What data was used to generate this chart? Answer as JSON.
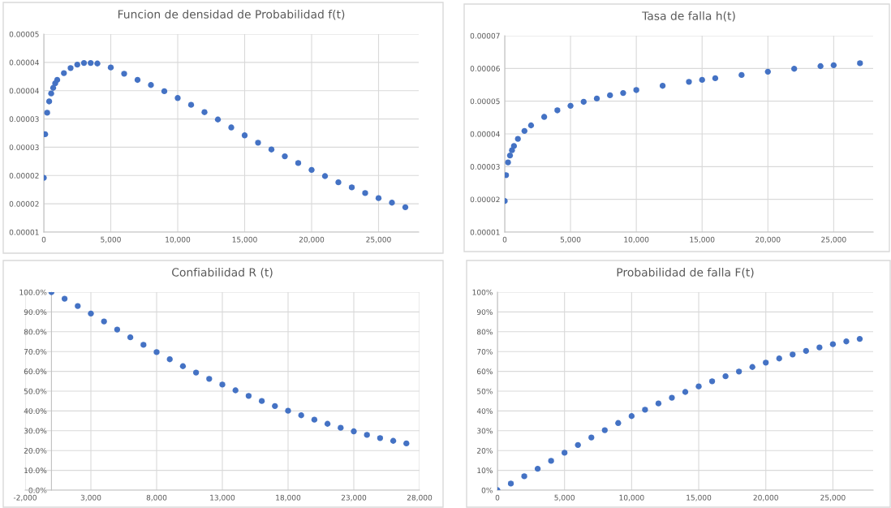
{
  "chart_data": [
    {
      "type": "scatter",
      "title": "Funcion de densidad de Probabilidad f(t)",
      "marker": "circle",
      "grid": true,
      "x": [
        0,
        100,
        250,
        400,
        550,
        700,
        850,
        1000,
        1500,
        2000,
        2500,
        3000,
        3500,
        4000,
        5000,
        6000,
        7000,
        8000,
        9000,
        10000,
        11000,
        12000,
        13000,
        14000,
        15000,
        16000,
        17000,
        18000,
        19000,
        20000,
        21000,
        22000,
        23000,
        24000,
        25000,
        26000,
        27000
      ],
      "series": [
        {
          "color": "#4472c4",
          "values": [
            1.96e-05,
            2.73e-05,
            3.11e-05,
            3.31e-05,
            3.45e-05,
            3.55e-05,
            3.63e-05,
            3.69e-05,
            3.81e-05,
            3.9e-05,
            3.96e-05,
            3.99e-05,
            3.99e-05,
            3.98e-05,
            3.91e-05,
            3.8e-05,
            3.69e-05,
            3.6e-05,
            3.49e-05,
            3.37e-05,
            3.25e-05,
            3.12e-05,
            2.99e-05,
            2.85e-05,
            2.71e-05,
            2.58e-05,
            2.46e-05,
            2.34e-05,
            2.22e-05,
            2.1e-05,
            1.99e-05,
            1.88e-05,
            1.79e-05,
            1.69e-05,
            1.6e-05,
            1.52e-05,
            1.44e-05
          ]
        }
      ],
      "xlim": [
        0,
        28000
      ],
      "xticks": [
        {
          "value": 0,
          "label": "0"
        },
        {
          "value": 5000,
          "label": "5,000"
        },
        {
          "value": 10000,
          "label": "10,000"
        },
        {
          "value": 15000,
          "label": "15,000"
        },
        {
          "value": 20000,
          "label": "20,000"
        },
        {
          "value": 25000,
          "label": "25,000"
        }
      ],
      "ylim": [
        1e-05,
        4.5e-05
      ],
      "yticks": [
        {
          "value": 1e-05,
          "label": "0.00001"
        },
        {
          "value": 1.5e-05,
          "label": "0.00002"
        },
        {
          "value": 2e-05,
          "label": "0.00002"
        },
        {
          "value": 2.5e-05,
          "label": "0.00003"
        },
        {
          "value": 3e-05,
          "label": "0.00003"
        },
        {
          "value": 3.5e-05,
          "label": "0.00004"
        },
        {
          "value": 4e-05,
          "label": "0.00004"
        },
        {
          "value": 4.5e-05,
          "label": "0.00005"
        }
      ]
    },
    {
      "type": "scatter",
      "title": "Tasa de falla h(t)",
      "marker": "circle",
      "grid": true,
      "x": [
        0,
        100,
        250,
        400,
        550,
        700,
        1000,
        1500,
        2000,
        3000,
        4000,
        5000,
        6000,
        7000,
        8000,
        9000,
        10000,
        12000,
        14000,
        15000,
        16000,
        18000,
        20000,
        22000,
        24000,
        25000,
        27000
      ],
      "series": [
        {
          "color": "#4472c4",
          "values": [
            1.95e-05,
            2.74e-05,
            3.13e-05,
            3.34e-05,
            3.5e-05,
            3.63e-05,
            3.85e-05,
            4.09e-05,
            4.26e-05,
            4.52e-05,
            4.72e-05,
            4.86e-05,
            4.98e-05,
            5.08e-05,
            5.18e-05,
            5.25e-05,
            5.34e-05,
            5.47e-05,
            5.59e-05,
            5.65e-05,
            5.7e-05,
            5.8e-05,
            5.9e-05,
            5.99e-05,
            6.07e-05,
            6.1e-05,
            6.16e-05
          ]
        }
      ],
      "xlim": [
        0,
        28000
      ],
      "xticks": [
        {
          "value": 0,
          "label": "0"
        },
        {
          "value": 5000,
          "label": "5,000"
        },
        {
          "value": 10000,
          "label": "10,000"
        },
        {
          "value": 15000,
          "label": "15,000"
        },
        {
          "value": 20000,
          "label": "20,000"
        },
        {
          "value": 25000,
          "label": "25,000"
        }
      ],
      "ylim": [
        1e-05,
        7e-05
      ],
      "yticks": [
        {
          "value": 1e-05,
          "label": "0.00001"
        },
        {
          "value": 2e-05,
          "label": "0.00002"
        },
        {
          "value": 3e-05,
          "label": "0.00003"
        },
        {
          "value": 4e-05,
          "label": "0.00004"
        },
        {
          "value": 5e-05,
          "label": "0.00005"
        },
        {
          "value": 6e-05,
          "label": "0.00006"
        },
        {
          "value": 7e-05,
          "label": "0.00007"
        }
      ]
    },
    {
      "type": "scatter",
      "title": "Confiabilidad R (t)",
      "marker": "circle",
      "grid": true,
      "x": [
        0,
        1000,
        2000,
        3000,
        4000,
        5000,
        6000,
        7000,
        8000,
        9000,
        10000,
        11000,
        12000,
        13000,
        14000,
        15000,
        16000,
        17000,
        18000,
        19000,
        20000,
        21000,
        22000,
        23000,
        24000,
        25000,
        26000,
        27000
      ],
      "series": [
        {
          "color": "#4472c4",
          "values": [
            1.0,
            0.967,
            0.93,
            0.892,
            0.852,
            0.811,
            0.772,
            0.734,
            0.697,
            0.661,
            0.626,
            0.594,
            0.562,
            0.533,
            0.504,
            0.476,
            0.45,
            0.425,
            0.401,
            0.378,
            0.356,
            0.335,
            0.315,
            0.297,
            0.279,
            0.263,
            0.249,
            0.236
          ]
        }
      ],
      "xlim": [
        -2000,
        28000
      ],
      "xticks": [
        {
          "value": -2000,
          "label": "-2,000"
        },
        {
          "value": 3000,
          "label": "3,000"
        },
        {
          "value": 8000,
          "label": "8,000"
        },
        {
          "value": 13000,
          "label": "13,000"
        },
        {
          "value": 18000,
          "label": "18,000"
        },
        {
          "value": 23000,
          "label": "23,000"
        },
        {
          "value": 28000,
          "label": "28,000"
        }
      ],
      "ylim": [
        0,
        1
      ],
      "yticks": [
        {
          "value": 0,
          "label": "0.0%"
        },
        {
          "value": 0.1,
          "label": "10.0%"
        },
        {
          "value": 0.2,
          "label": "20.0%"
        },
        {
          "value": 0.3,
          "label": "30.0%"
        },
        {
          "value": 0.4,
          "label": "40.0%"
        },
        {
          "value": 0.5,
          "label": "50.0%"
        },
        {
          "value": 0.6,
          "label": "60.0%"
        },
        {
          "value": 0.7,
          "label": "70.0%"
        },
        {
          "value": 0.8,
          "label": "80.0%"
        },
        {
          "value": 0.9,
          "label": "90.0%"
        },
        {
          "value": 1,
          "label": "100.0%"
        }
      ]
    },
    {
      "type": "scatter",
      "title": "Probabilidad de falla F(t)",
      "marker": "circle",
      "grid": true,
      "x": [
        0,
        1000,
        2000,
        3000,
        4000,
        5000,
        6000,
        7000,
        8000,
        9000,
        10000,
        11000,
        12000,
        13000,
        14000,
        15000,
        16000,
        17000,
        18000,
        19000,
        20000,
        21000,
        22000,
        23000,
        24000,
        25000,
        26000,
        27000
      ],
      "series": [
        {
          "color": "#4472c4",
          "values": [
            0.0,
            0.033,
            0.07,
            0.108,
            0.148,
            0.189,
            0.228,
            0.266,
            0.303,
            0.339,
            0.374,
            0.406,
            0.438,
            0.467,
            0.496,
            0.524,
            0.55,
            0.575,
            0.599,
            0.622,
            0.644,
            0.665,
            0.685,
            0.703,
            0.721,
            0.737,
            0.751,
            0.764
          ]
        }
      ],
      "xlim": [
        0,
        28000
      ],
      "xticks": [
        {
          "value": 0,
          "label": "0"
        },
        {
          "value": 5000,
          "label": "5,000"
        },
        {
          "value": 10000,
          "label": "10,000"
        },
        {
          "value": 15000,
          "label": "15,000"
        },
        {
          "value": 20000,
          "label": "20,000"
        },
        {
          "value": 25000,
          "label": "25,000"
        }
      ],
      "ylim": [
        0,
        1
      ],
      "yticks": [
        {
          "value": 0,
          "label": "0%"
        },
        {
          "value": 0.1,
          "label": "10%"
        },
        {
          "value": 0.2,
          "label": "20%"
        },
        {
          "value": 0.3,
          "label": "30%"
        },
        {
          "value": 0.4,
          "label": "40%"
        },
        {
          "value": 0.5,
          "label": "50%"
        },
        {
          "value": 0.6,
          "label": "60%"
        },
        {
          "value": 0.7,
          "label": "70%"
        },
        {
          "value": 0.8,
          "label": "80%"
        },
        {
          "value": 0.9,
          "label": "90%"
        },
        {
          "value": 1,
          "label": "100%"
        }
      ]
    }
  ]
}
